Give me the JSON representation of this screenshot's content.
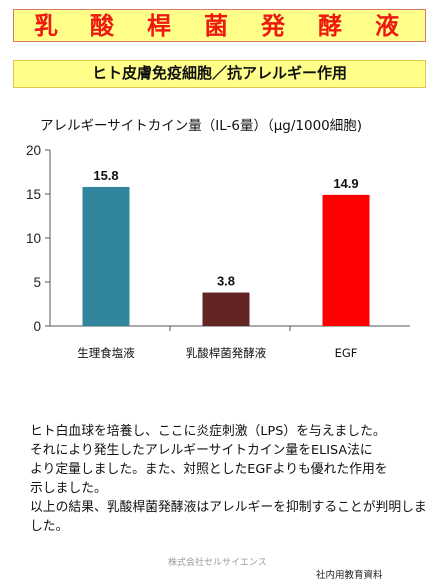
{
  "header": {
    "title_chars": [
      "乳",
      "酸",
      "桿",
      "菌",
      "発",
      "酵",
      "液"
    ],
    "title_color": "#ee1a12",
    "background_color": "#ffff8a"
  },
  "subtitle": "ヒト皮膚免疫細胞／抗アレルギー作用",
  "chart_data": {
    "type": "bar",
    "title": "アレルギーサイトカイン量（IL-6量）（μg/1000細胞)",
    "categories": [
      "生理食塩液",
      "乳酸桿菌発酵液",
      "EGF"
    ],
    "values": [
      15.8,
      3.8,
      14.9
    ],
    "value_labels": [
      "15.8",
      "3.8",
      "14.9"
    ],
    "colors": [
      "#31859c",
      "#632523",
      "#ff0000"
    ],
    "ylim": [
      0,
      20
    ],
    "yticks": [
      0,
      5,
      10,
      15,
      20
    ],
    "ytick_labels": [
      "0",
      "5",
      "10",
      "15",
      "20"
    ],
    "xlabel": "",
    "ylabel": "",
    "grid": false,
    "legend": "none"
  },
  "description": [
    "ヒト白血球を培養し、ここに炎症刺激（LPS）を与えました。",
    "それにより発生したアレルギーサイトカイン量をELISA法に",
    "より定量しました。また、対照としたEGFよりも優れた作用を",
    "示しました。",
    "以上の結果、乳酸桿菌発酵液はアレルギーを抑制することが判明しました。"
  ],
  "company": "株式会社セルサイエンス",
  "footnote": "社内用教育資料"
}
